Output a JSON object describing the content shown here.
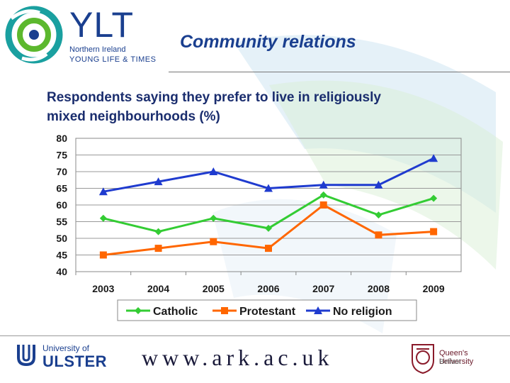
{
  "header": {
    "logo_main": "YLT",
    "logo_line1": "Northern Ireland",
    "logo_line2": "YOUNG LIFE & TIMES",
    "title": "Community relations"
  },
  "subtitle_line1": "Respondents saying they prefer to live in religiously",
  "subtitle_line2": "mixed neighbourhoods (%)",
  "chart_data": {
    "type": "line",
    "title": "",
    "xlabel": "",
    "ylabel": "",
    "x": [
      "2003",
      "2004",
      "2005",
      "2006",
      "2007",
      "2008",
      "2009"
    ],
    "ylim": [
      40,
      80
    ],
    "yticks": [
      40,
      45,
      50,
      55,
      60,
      65,
      70,
      75,
      80
    ],
    "grid": "horizontal",
    "legend_position": "bottom",
    "series": [
      {
        "name": "Catholic",
        "values": [
          56,
          52,
          56,
          53,
          63,
          57,
          62
        ],
        "color": "#33cc33",
        "marker": "diamond"
      },
      {
        "name": "Protestant",
        "values": [
          45,
          47,
          49,
          47,
          60,
          51,
          52
        ],
        "color": "#ff6600",
        "marker": "square"
      },
      {
        "name": "No religion",
        "values": [
          64,
          67,
          70,
          65,
          66,
          66,
          74
        ],
        "color": "#1f3bcf",
        "marker": "triangle"
      }
    ]
  },
  "footer": {
    "ulster_line1": "University of",
    "ulster_line2": "ULSTER",
    "url": "www.ark.ac.uk",
    "qub_line1": "Queen's University",
    "qub_line2": "Belfast"
  },
  "colors": {
    "brand_blue": "#1a3f8f",
    "title_blue": "#1a3f8f"
  }
}
